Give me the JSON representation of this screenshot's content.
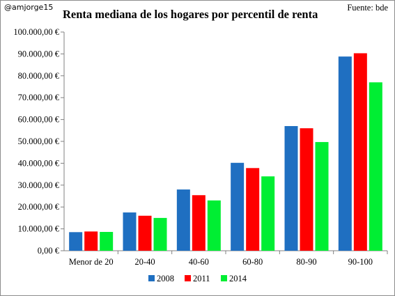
{
  "handle": "@amjorge15",
  "source": "Fuente: bde",
  "chart_data": {
    "type": "bar",
    "title": "Renta mediana de los hogares por percentil de renta",
    "xlabel": "",
    "ylabel": "",
    "categories": [
      "Menor de 20",
      "20-40",
      "40-60",
      "60-80",
      "80-90",
      "90-100"
    ],
    "series": [
      {
        "name": "2008",
        "color": "#1f6fc1",
        "values": [
          8500,
          17500,
          28000,
          40200,
          57000,
          88800
        ]
      },
      {
        "name": "2011",
        "color": "#ff0000",
        "values": [
          8800,
          16000,
          25400,
          37800,
          56000,
          90300
        ]
      },
      {
        "name": "2014",
        "color": "#00ee33",
        "values": [
          8600,
          15000,
          23000,
          34000,
          49700,
          77000
        ]
      }
    ],
    "ylim": [
      0,
      100000
    ],
    "y_ticks": [
      {
        "value": 0,
        "label": "0,00 €"
      },
      {
        "value": 10000,
        "label": "10.000,00 €"
      },
      {
        "value": 20000,
        "label": "20.000,00 €"
      },
      {
        "value": 30000,
        "label": "30.000,00 €"
      },
      {
        "value": 40000,
        "label": "40.000,00 €"
      },
      {
        "value": 50000,
        "label": "50.000,00 €"
      },
      {
        "value": 60000,
        "label": "60.000,00 €"
      },
      {
        "value": 70000,
        "label": "70.000,00 €"
      },
      {
        "value": 80000,
        "label": "80.000,00 €"
      },
      {
        "value": 90000,
        "label": "90.000,00 €"
      },
      {
        "value": 100000,
        "label": "100.000,00 €"
      }
    ],
    "grid": false,
    "legend": "bottom"
  }
}
